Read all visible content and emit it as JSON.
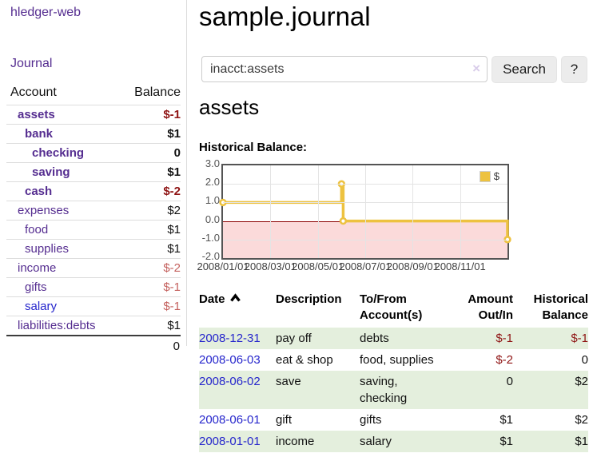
{
  "theme": {
    "purple": "#552d90",
    "blue": "#2626cc",
    "negative_strong": "#8f1414",
    "negative_soft": "#c4615e",
    "stripe_green": "#e4efdd",
    "chart_gold": "#edc240",
    "chart_negative_bg": "#fbdada",
    "chart_zero_line": "#8b0000",
    "grid": "#e4e4e4"
  },
  "sidebar": {
    "brand": "hledger-web",
    "nav_journal": "Journal",
    "accounts": {
      "account_header": "Account",
      "balance_header": "Balance",
      "rows": [
        {
          "label": "assets",
          "level": 0,
          "bold": true,
          "balance": "$-1",
          "bclass": "neg-strong",
          "link": "purple"
        },
        {
          "label": "bank",
          "level": 1,
          "bold": true,
          "balance": "$1",
          "bclass": "",
          "link": "purple"
        },
        {
          "label": "checking",
          "level": 2,
          "bold": true,
          "balance": "0",
          "bclass": "",
          "link": "purple"
        },
        {
          "label": "saving",
          "level": 2,
          "bold": true,
          "balance": "$1",
          "bclass": "",
          "link": "purple"
        },
        {
          "label": "cash",
          "level": 1,
          "bold": true,
          "balance": "$-2",
          "bclass": "neg-strong",
          "link": "purple"
        },
        {
          "label": "expenses",
          "level": 0,
          "bold": false,
          "balance": "$2",
          "bclass": "",
          "link": "purple"
        },
        {
          "label": "food",
          "level": 1,
          "bold": false,
          "balance": "$1",
          "bclass": "",
          "link": "purple"
        },
        {
          "label": "supplies",
          "level": 1,
          "bold": false,
          "balance": "$1",
          "bclass": "",
          "link": "purple"
        },
        {
          "label": "income",
          "level": 0,
          "bold": false,
          "balance": "$-2",
          "bclass": "neg-soft",
          "link": "purple"
        },
        {
          "label": "gifts",
          "level": 1,
          "bold": false,
          "balance": "$-1",
          "bclass": "neg-soft",
          "link": "purple"
        },
        {
          "label": "salary",
          "level": 1,
          "bold": false,
          "balance": "$-1",
          "bclass": "neg-soft",
          "link": "blue"
        },
        {
          "label": "liabilities:debts",
          "level": 0,
          "bold": false,
          "balance": "$1",
          "bclass": "",
          "link": "purple"
        }
      ],
      "total": "0"
    }
  },
  "main": {
    "title": "sample.journal",
    "search": {
      "value": "inacct:assets",
      "clear_icon": "×",
      "button_label": "Search",
      "help_label": "?"
    },
    "account_heading": "assets",
    "chart_label": "Historical Balance:"
  },
  "chart_data": {
    "type": "line",
    "title": "Historical Balance:",
    "steps": true,
    "series": [
      {
        "name": "$",
        "color": "#edc240",
        "points": [
          {
            "x": "2008-01-01",
            "m": 0,
            "y": 1
          },
          {
            "x": "2008-06-01",
            "m": 5,
            "y": 2
          },
          {
            "x": "2008-06-03",
            "m": 5.07,
            "y": 0
          },
          {
            "x": "2008-12-31",
            "m": 12,
            "y": -1
          }
        ]
      }
    ],
    "x_ticks": [
      {
        "label": "2008/01/01",
        "m": 0
      },
      {
        "label": "2008/03/01",
        "m": 2
      },
      {
        "label": "2008/05/01",
        "m": 4
      },
      {
        "label": "2008/07/01",
        "m": 6
      },
      {
        "label": "2008/09/01",
        "m": 8
      },
      {
        "label": "2008/11/01",
        "m": 10
      }
    ],
    "y_ticks": [
      {
        "label": "3.0",
        "v": 3
      },
      {
        "label": "2.0",
        "v": 2
      },
      {
        "label": "1.0",
        "v": 1
      },
      {
        "label": "0.0",
        "v": 0
      },
      {
        "label": "-1.0",
        "v": -1
      },
      {
        "label": "-2.0",
        "v": -2
      }
    ],
    "ylim": [
      -2,
      3
    ],
    "xlim_months": [
      0,
      12
    ],
    "grid": true,
    "negative_region_below": 0,
    "legend": {
      "label": "$",
      "position": "top-right"
    }
  },
  "register": {
    "headers": {
      "date": "Date",
      "description": "Description",
      "tofrom": "To/From Account(s)",
      "amount": "Amount Out/In",
      "balance": "Historical Balance"
    },
    "rows": [
      {
        "date": "2008-12-31",
        "description": "pay off",
        "tofrom": "debts",
        "amount": "$-1",
        "amount_neg": true,
        "balance": "$-1",
        "balance_neg": true
      },
      {
        "date": "2008-06-03",
        "description": "eat & shop",
        "tofrom": "food, supplies",
        "amount": "$-2",
        "amount_neg": true,
        "balance": "0",
        "balance_neg": false
      },
      {
        "date": "2008-06-02",
        "description": "save",
        "tofrom": "saving, checking",
        "amount": "0",
        "amount_neg": false,
        "balance": "$2",
        "balance_neg": false
      },
      {
        "date": "2008-06-01",
        "description": "gift",
        "tofrom": "gifts",
        "amount": "$1",
        "amount_neg": false,
        "balance": "$2",
        "balance_neg": false
      },
      {
        "date": "2008-01-01",
        "description": "income",
        "tofrom": "salary",
        "amount": "$1",
        "amount_neg": false,
        "balance": "$1",
        "balance_neg": false
      }
    ]
  }
}
